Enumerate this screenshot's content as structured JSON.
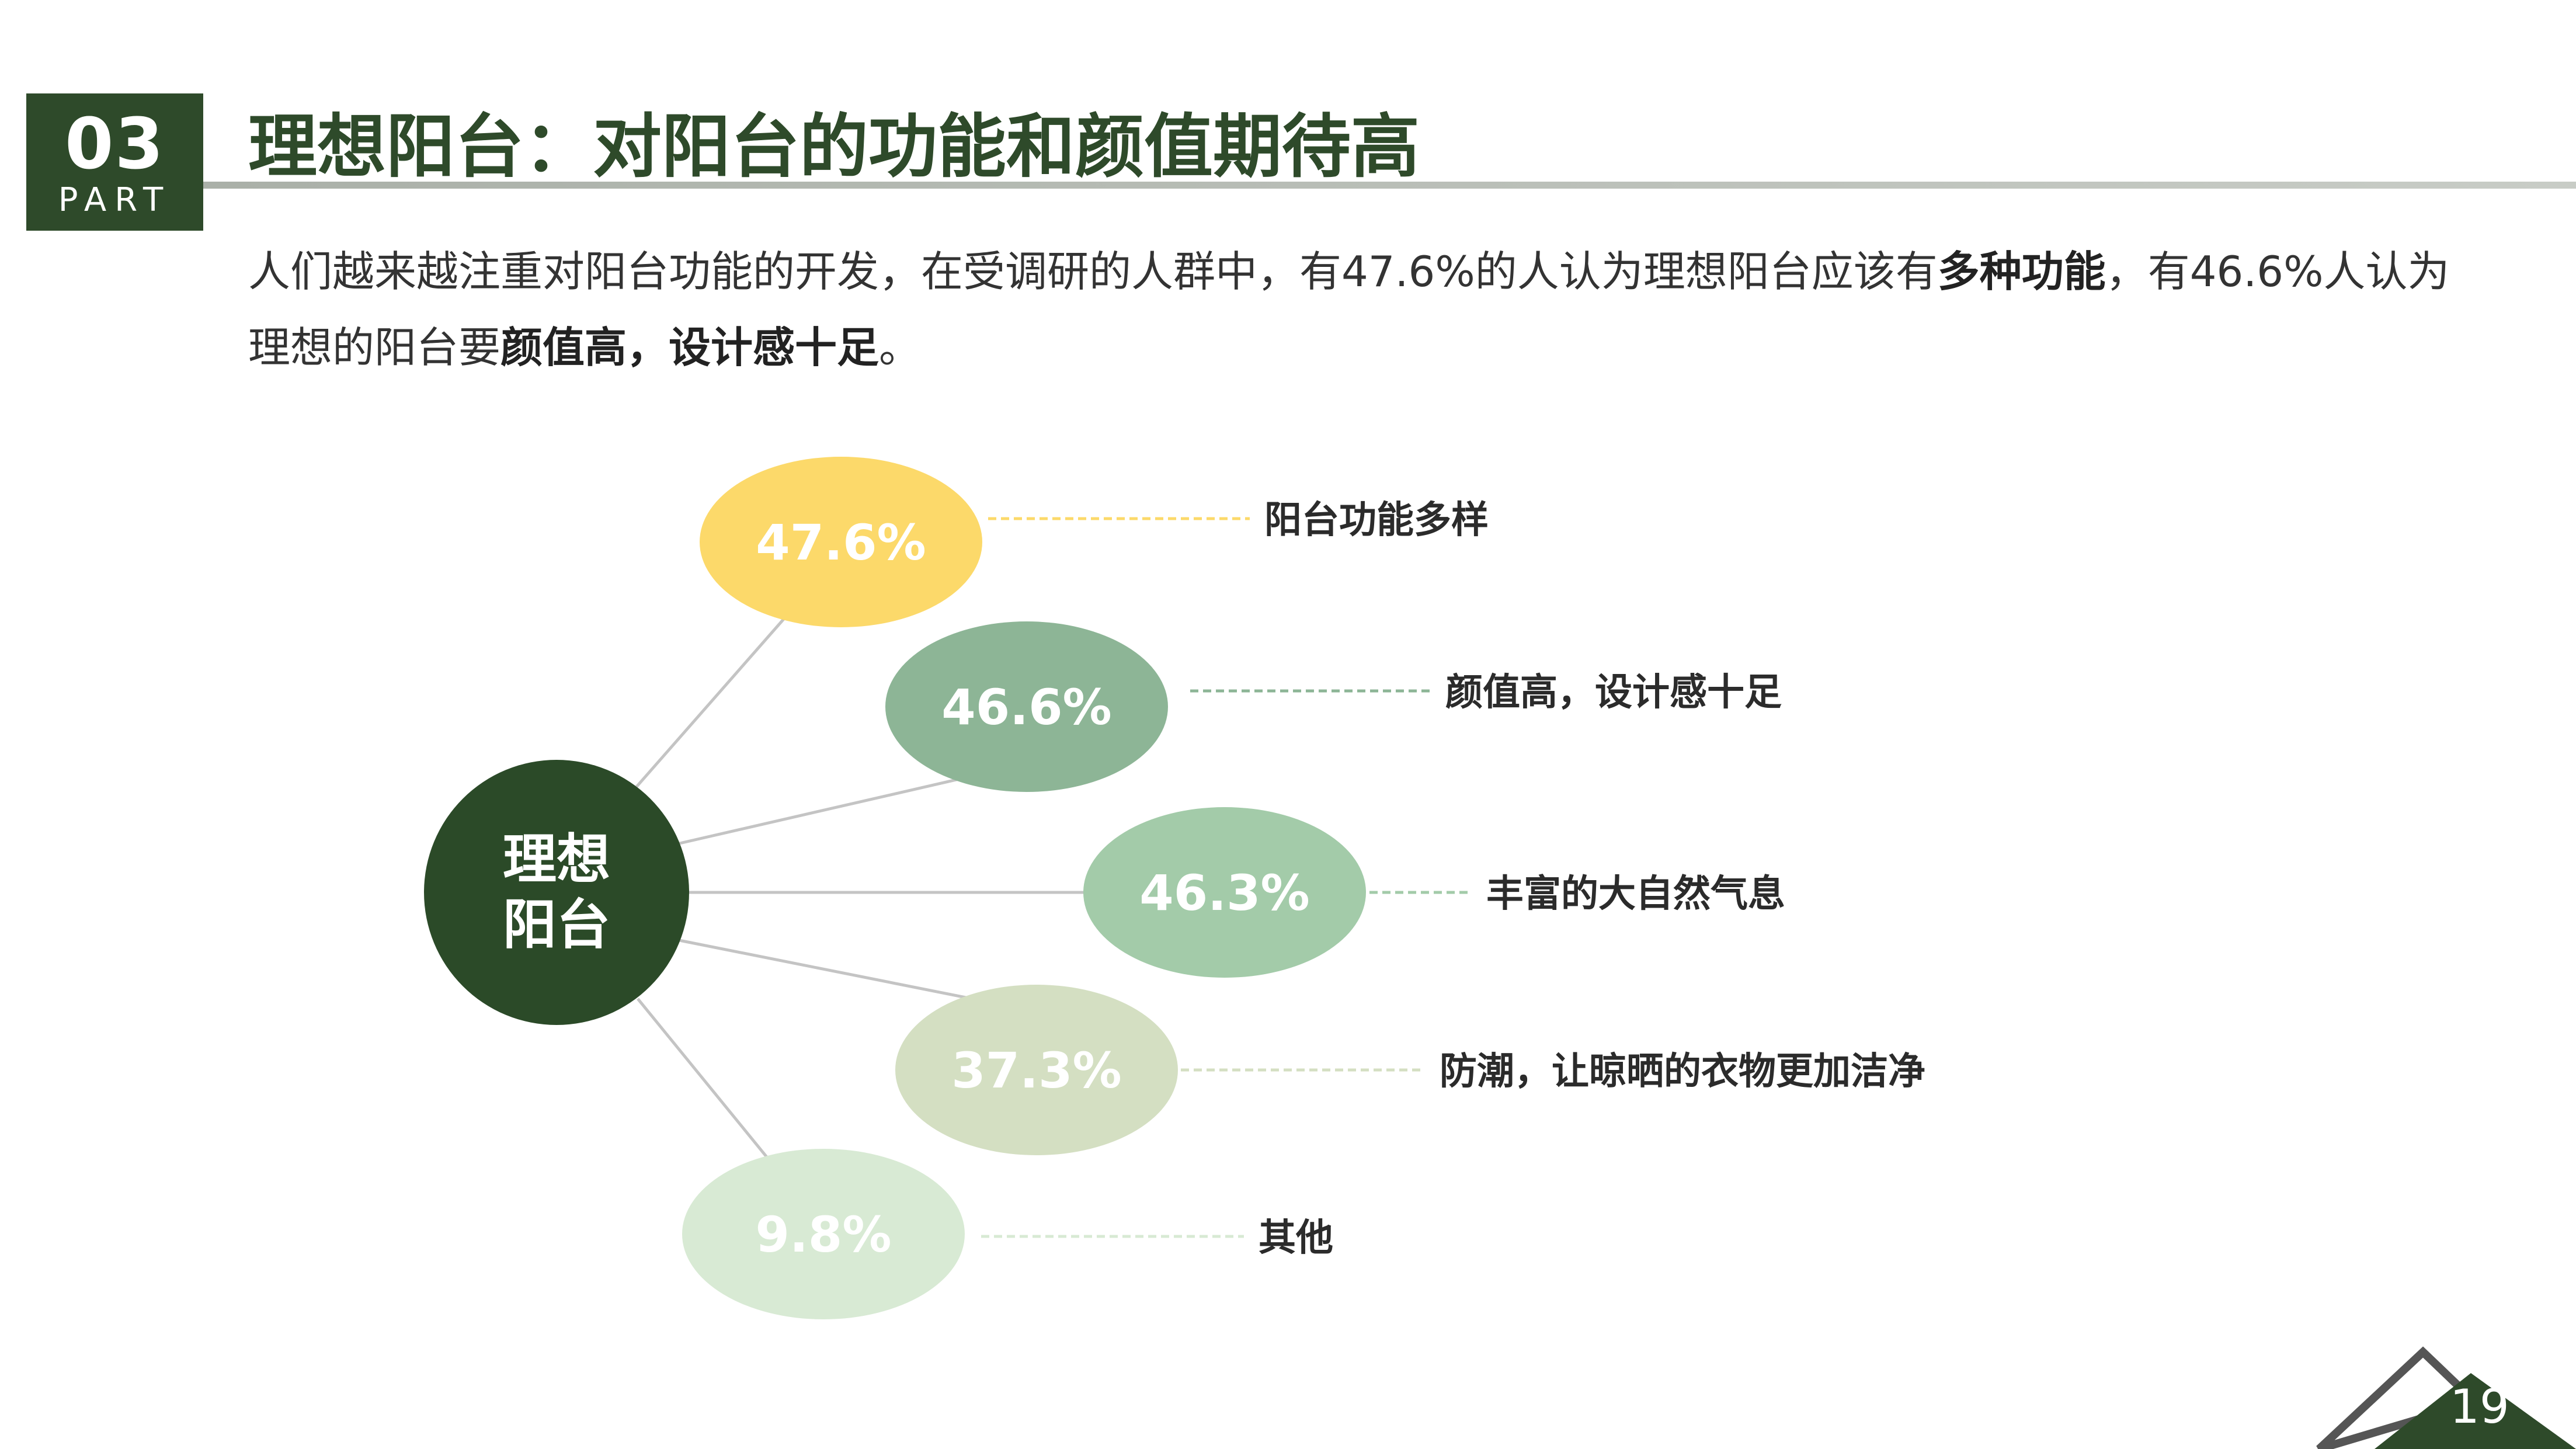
{
  "header": {
    "part_number": "03",
    "part_word": "PART",
    "title": "理想阳台：对阳台的功能和颜值期待高"
  },
  "intro": {
    "text_a": "人们越来越注重对阳台功能的开发，在受调研的人群中，有47.6%的人认为理想阳台应该有",
    "bold_a": "多种功能",
    "text_b": "，有46.6%人认为理想的阳台要",
    "bold_b": "颜值高，设计感十足",
    "text_c": "。"
  },
  "chart_data": {
    "type": "mind-map",
    "center_label_lines": [
      "理想",
      "阳台"
    ],
    "items": [
      {
        "value": 47.6,
        "label_text": "47.6%",
        "description": "阳台功能多样",
        "color": "#fcd96a"
      },
      {
        "value": 46.6,
        "label_text": "46.6%",
        "description": "颜值高，设计感十足",
        "color": "#8db596"
      },
      {
        "value": 46.3,
        "label_text": "46.3%",
        "description": "丰富的大自然气息",
        "color": "#a3cba9"
      },
      {
        "value": 37.3,
        "label_text": "37.3%",
        "description": "防潮，让晾晒的衣物更加洁净",
        "color": "#d4dfc2"
      },
      {
        "value": 9.8,
        "label_text": "9.8%",
        "description": "其他",
        "color": "#d8ead4"
      }
    ],
    "colors": {
      "center": "#2b4a28",
      "connector": "#c4c4c4"
    }
  },
  "footer": {
    "page_number": "19",
    "colors": {
      "triangle": "#2e4a2a",
      "outline": "#555555"
    }
  }
}
